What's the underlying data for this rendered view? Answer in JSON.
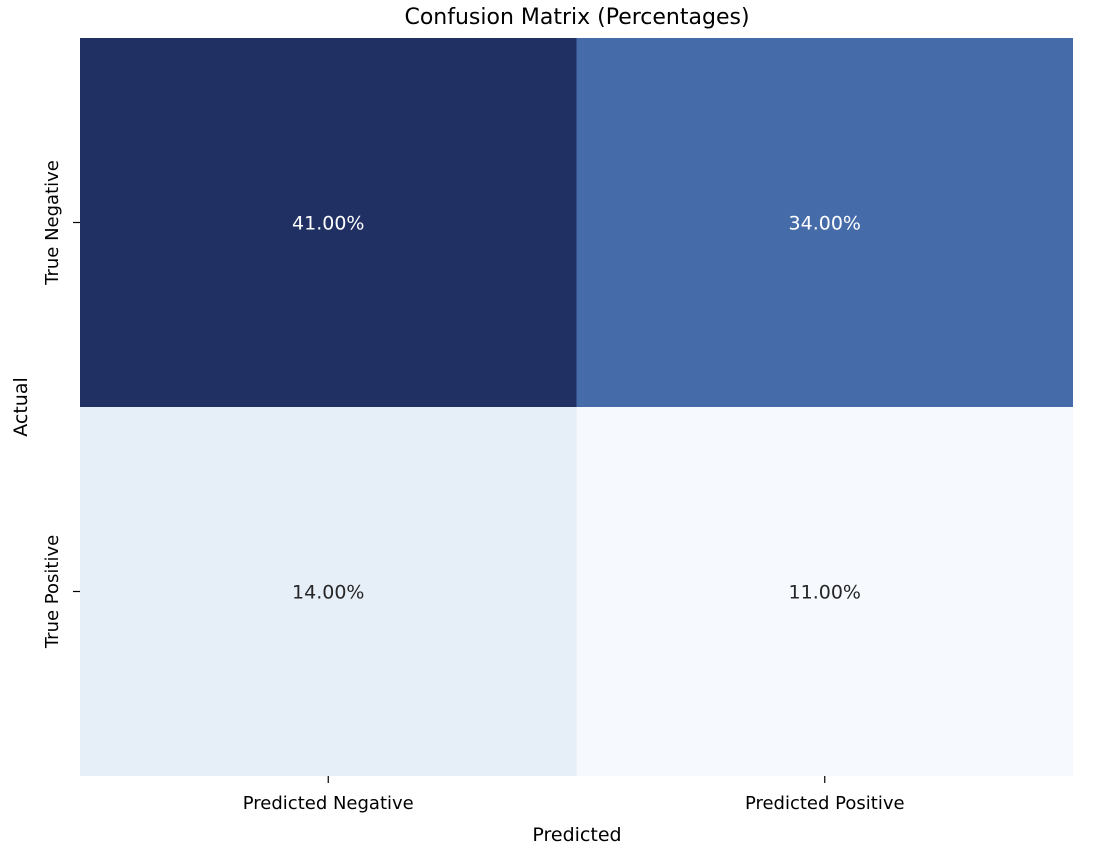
{
  "chart_data": {
    "type": "heatmap",
    "title": "Confusion Matrix (Percentages)",
    "xlabel": "Predicted",
    "ylabel": "Actual",
    "x_categories": [
      "Predicted Negative",
      "Predicted Positive"
    ],
    "y_categories": [
      "True Negative",
      "True Positive"
    ],
    "values": [
      [
        41.0,
        34.0
      ],
      [
        14.0,
        11.0
      ]
    ],
    "cell_labels": [
      [
        "41.00%",
        "34.00%"
      ],
      [
        "14.00%",
        "11.00%"
      ]
    ],
    "colormap": "Blues",
    "cell_colors": [
      [
        "#203063",
        "#466ba9"
      ],
      [
        "#e6eef8",
        "#f6faff"
      ]
    ],
    "label_colors": {
      "light": "#ffffff",
      "dark": "#262626"
    },
    "colorbar": false,
    "grid": false
  }
}
